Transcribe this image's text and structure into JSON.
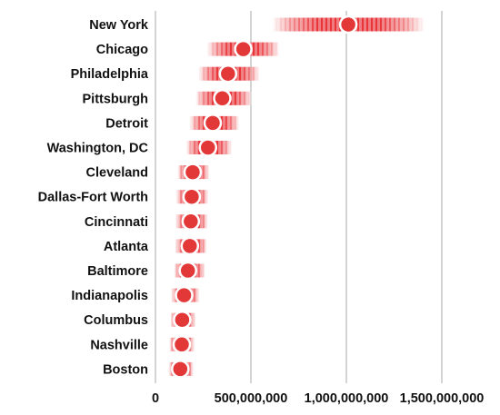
{
  "chart_data": {
    "type": "range-dot",
    "title": "",
    "xlabel": "",
    "ylabel": "",
    "xlim": [
      0,
      1600000000
    ],
    "x_ticks": [
      0,
      500000000,
      1000000000,
      1500000000
    ],
    "x_tick_labels": [
      "0",
      "500,000,000",
      "1,000,000,000",
      "1,500,000,000"
    ],
    "grid": true,
    "categories": [
      "New York",
      "Chicago",
      "Philadelphia",
      "Pittsburgh",
      "Detroit",
      "Washington, DC",
      "Cleveland",
      "Dallas-Fort Worth",
      "Cincinnati",
      "Atlanta",
      "Baltimore",
      "Indianapolis",
      "Columbus",
      "Nashville",
      "Boston"
    ],
    "values": [
      1010000000,
      460000000,
      380000000,
      350000000,
      300000000,
      275000000,
      195000000,
      190000000,
      185000000,
      180000000,
      170000000,
      150000000,
      140000000,
      138000000,
      130000000
    ],
    "ranges": [
      [
        610000000,
        1410000000
      ],
      [
        270000000,
        650000000
      ],
      [
        225000000,
        545000000
      ],
      [
        210000000,
        505000000
      ],
      [
        178000000,
        440000000
      ],
      [
        160000000,
        400000000
      ],
      [
        115000000,
        282000000
      ],
      [
        108000000,
        277000000
      ],
      [
        105000000,
        275000000
      ],
      [
        103000000,
        270000000
      ],
      [
        97000000,
        260000000
      ],
      [
        82000000,
        230000000
      ],
      [
        78000000,
        210000000
      ],
      [
        72000000,
        205000000
      ],
      [
        68000000,
        200000000
      ]
    ],
    "colors": {
      "range": "#e8353a",
      "dot": "#e23838",
      "dot_outline": "#ffffff",
      "grid": "#a8a8a8",
      "text": "#111111"
    }
  }
}
